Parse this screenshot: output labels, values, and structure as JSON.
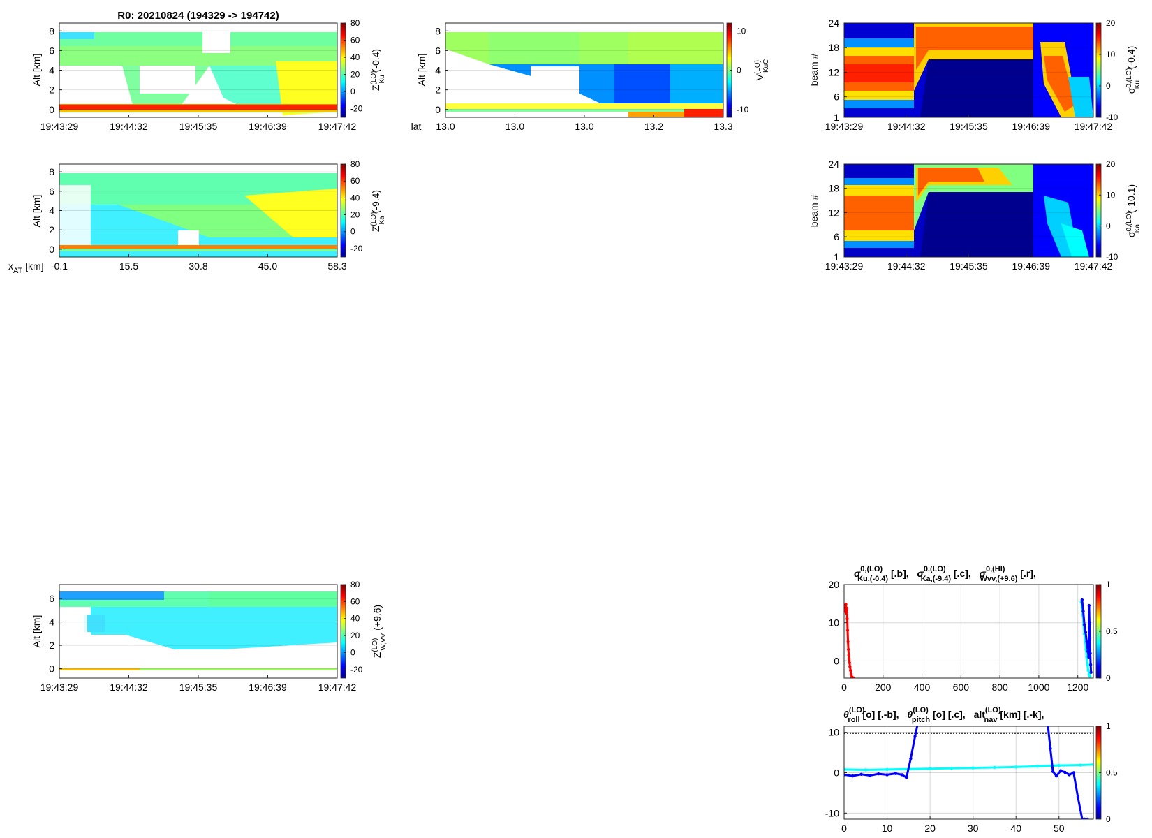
{
  "figure_title": "R0:  20210824 (194329 -> 194742)",
  "colors": {
    "orange": "#FF6A00",
    "blue": "#0000FF",
    "cyan": "#00FFFF",
    "red": "#FF0000",
    "darkblue": "#00008F",
    "yellow": "#FFFF00",
    "green": "#80FF80"
  },
  "chart_data": [
    {
      "id": "zku",
      "type": "heatmap",
      "ylabel": "Alt [km]",
      "yticks": [
        "0",
        "2",
        "4",
        "6",
        "8"
      ],
      "ylim": [
        -0.8,
        8.8
      ],
      "xticks": [
        "19:43:29",
        "19:44:32",
        "19:45:35",
        "19:46:39",
        "19:47:42"
      ],
      "colorbar_label": {
        "main": "Z",
        "sup": "(LO)",
        "sub": "Ku",
        "suffix": " (-0.4)"
      },
      "colorbar_ticks": [
        "80",
        "60",
        "40",
        "20",
        "0",
        "-20"
      ],
      "clim": [
        -30,
        80
      ]
    },
    {
      "id": "vku",
      "type": "heatmap",
      "ylabel": "Alt [km]",
      "yticks": [
        "0",
        "2",
        "4",
        "6",
        "8"
      ],
      "ylim": [
        -0.8,
        8.8
      ],
      "xlabel": "lat",
      "xticks": [
        "13.0",
        "13.0",
        "13.0",
        "13.2",
        "13.3"
      ],
      "colorbar_label": {
        "main": "V",
        "sup": "(LO)",
        "sub": "KuC",
        "suffix": ""
      },
      "colorbar_ticks": [
        "10",
        "0",
        "-10"
      ],
      "clim": [
        -12,
        12
      ]
    },
    {
      "id": "sku",
      "type": "heatmap",
      "ylabel": "beam #",
      "yticks": [
        "1",
        "6",
        "12",
        "18",
        "24"
      ],
      "ylim": [
        1,
        24
      ],
      "xticks": [
        "19:43:29",
        "19:44:32",
        "19:45:35",
        "19:46:39",
        "19:47:42"
      ],
      "colorbar_label": {
        "main": "σ",
        "sup": "0,(LO)",
        "sub": "Ku",
        "suffix": " (-0.4)"
      },
      "colorbar_ticks": [
        "20",
        "10",
        "0",
        "-10"
      ],
      "clim": [
        -10,
        20
      ]
    },
    {
      "id": "zka",
      "type": "heatmap",
      "ylabel": "Alt [km]",
      "yticks": [
        "0",
        "2",
        "4",
        "6",
        "8"
      ],
      "ylim": [
        -0.8,
        8.8
      ],
      "xlabel_main": "x",
      "xlabel_sub": "AT",
      "xlabel_suffix": " [km]",
      "xticks": [
        "-0.1",
        "15.5",
        "30.8",
        "45.0",
        "58.3"
      ],
      "colorbar_label": {
        "main": "Z",
        "sup": "(LO)",
        "sub": "Ka",
        "suffix": " (-9.4)"
      },
      "colorbar_ticks": [
        "80",
        "60",
        "40",
        "20",
        "0",
        "-20"
      ],
      "clim": [
        -30,
        80
      ]
    },
    {
      "id": "ska",
      "type": "heatmap",
      "ylabel": "beam #",
      "yticks": [
        "1",
        "6",
        "12",
        "18",
        "24"
      ],
      "ylim": [
        1,
        24
      ],
      "xticks": [
        "19:43:29",
        "19:44:32",
        "19:45:35",
        "19:46:39",
        "19:47:42"
      ],
      "colorbar_label": {
        "main": "σ",
        "sup": "0,(LO)",
        "sub": "Ka",
        "suffix": " (-10.1)"
      },
      "colorbar_ticks": [
        "20",
        "10",
        "0",
        "-10"
      ],
      "clim": [
        -10,
        20
      ]
    },
    {
      "id": "zw",
      "type": "heatmap",
      "ylabel": "Alt [km]",
      "yticks": [
        "0",
        "2",
        "4",
        "6"
      ],
      "ylim": [
        -0.8,
        7.2
      ],
      "xticks": [
        "19:43:29",
        "19:44:32",
        "19:45:35",
        "19:46:39",
        "19:47:42"
      ],
      "colorbar_label": {
        "main": "Z",
        "sup": "(LO)",
        "sub": "W,VV",
        "suffix": " (+9.6)"
      },
      "colorbar_ticks": [
        "80",
        "60",
        "40",
        "20",
        "0",
        "-20"
      ],
      "clim": [
        -30,
        80
      ]
    },
    {
      "id": "sigma_lines",
      "type": "line",
      "title_parts": [
        {
          "main": "σ",
          "sup": "0,(LO)",
          "sub": "Ku,(-0.4)",
          "suffix": " [.b],"
        },
        {
          "main": "σ",
          "sup": "0,(LO)",
          "sub": "Ka,(-9.4)",
          "suffix": " [.c],"
        },
        {
          "main": "σ",
          "sup": "0,(HI)",
          "sub": "Wvv,(+9.6)",
          "suffix": " [.r],"
        }
      ],
      "xticks": [
        "0",
        "200",
        "400",
        "600",
        "800",
        "1000",
        "1200"
      ],
      "xlim": [
        0,
        1280
      ],
      "yticks": [
        "0",
        "10",
        "20"
      ],
      "ylim": [
        -4.5,
        20
      ],
      "colorbar_ticks": [
        "1",
        "0.5",
        "0"
      ],
      "series": [
        {
          "name": "Wvv",
          "color": "red",
          "x": [
            0,
            3,
            6,
            9,
            12,
            14,
            16,
            18,
            20,
            22,
            24,
            26,
            28,
            30,
            33,
            36,
            40,
            45,
            50
          ],
          "y": [
            13.0,
            14.5,
            13.5,
            14.8,
            12.5,
            13.8,
            11.0,
            8.0,
            5.0,
            3.0,
            1.5,
            0.5,
            -0.5,
            -1.5,
            -2.5,
            -3.5,
            -4.2,
            -4.5,
            -4.5
          ]
        },
        {
          "name": "Ka",
          "color": "cyan",
          "x": [
            1218,
            1222,
            1226,
            1230,
            1234,
            1238,
            1242,
            1246,
            1250,
            1254,
            1258,
            1262
          ],
          "y": [
            15.5,
            14.0,
            12.0,
            9.5,
            7.0,
            5.0,
            3.0,
            1.0,
            -1.0,
            -2.5,
            -3.5,
            -4.0
          ]
        },
        {
          "name": "Ku",
          "color": "blue",
          "x": [
            1222,
            1228,
            1234,
            1240,
            1246,
            1252,
            1256,
            1258,
            1260,
            1262,
            1264,
            1266,
            1268
          ],
          "y": [
            16.0,
            13.0,
            9.5,
            7.5,
            5.0,
            2.5,
            1.0,
            14.5,
            10.0,
            6.0,
            2.0,
            -1.0,
            -3.0
          ]
        }
      ]
    },
    {
      "id": "attitude_lines",
      "type": "line",
      "title_parts": [
        {
          "main": "θ",
          "sup": "(LO)",
          "sub": "roll",
          "suffix": " [o] [.-b],"
        },
        {
          "main": "θ",
          "sup": "(LO)",
          "sub": "pitch",
          "suffix": " [o] [.c],"
        },
        {
          "main": "alt",
          "sup": "(LO)",
          "sub": "nav",
          "suffix": " [km] [.-k],"
        }
      ],
      "xticks": [
        "0",
        "10",
        "20",
        "30",
        "40",
        "50"
      ],
      "xlim": [
        0,
        58
      ],
      "yticks": [
        "-10",
        "0",
        "10"
      ],
      "ylim": [
        -11.5,
        11.5
      ],
      "colorbar_ticks": [
        "1",
        "0.5",
        "0"
      ],
      "series": [
        {
          "name": "alt_nav",
          "color": "black",
          "x": [
            0,
            58
          ],
          "y": [
            9.8,
            9.8
          ]
        },
        {
          "name": "pitch",
          "color": "cyan",
          "x": [
            0,
            5,
            10,
            15,
            20,
            25,
            30,
            35,
            40,
            45,
            50,
            55,
            58
          ],
          "y": [
            0.8,
            0.7,
            0.8,
            0.9,
            1.0,
            1.1,
            1.2,
            1.3,
            1.4,
            1.6,
            1.8,
            1.9,
            2.0
          ]
        },
        {
          "name": "roll",
          "color": "blue",
          "x": [
            0,
            2,
            4,
            6,
            8,
            10,
            12,
            13.5,
            14.5,
            15.5,
            16.5,
            17.5,
            47.2,
            48,
            48.6,
            49.4,
            50.4,
            51.4,
            52.4,
            53.4,
            54.4,
            55.4,
            56,
            56.6
          ],
          "y": [
            -0.5,
            -0.8,
            -0.4,
            -0.7,
            -0.3,
            -0.5,
            -0.2,
            -0.5,
            -1.2,
            3.5,
            9.0,
            14.0,
            14.0,
            6.0,
            0.3,
            -0.8,
            0.5,
            0.1,
            -0.5,
            0.0,
            -6.0,
            -11.5,
            -11.5,
            -11.5
          ]
        }
      ]
    }
  ]
}
